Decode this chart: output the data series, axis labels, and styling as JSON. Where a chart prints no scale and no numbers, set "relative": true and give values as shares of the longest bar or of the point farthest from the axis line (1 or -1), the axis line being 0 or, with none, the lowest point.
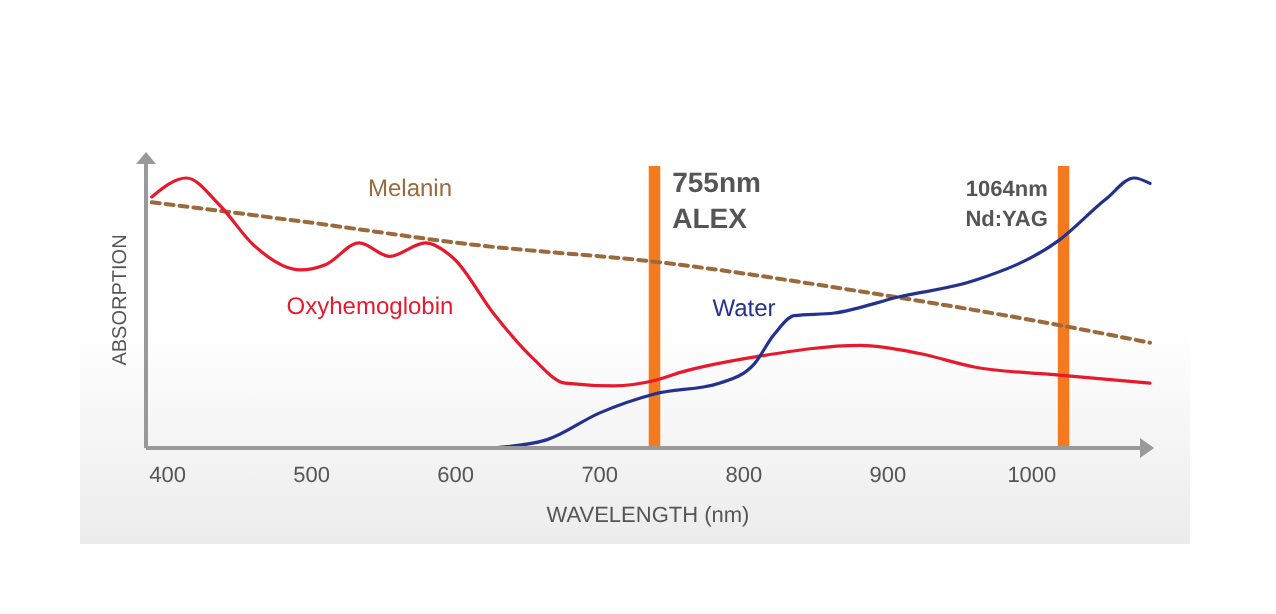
{
  "chart_data": {
    "type": "line",
    "relative": true,
    "xlabel": "WAVELENGTH (nm)",
    "ylabel": "ABSORPTION",
    "xlim": [
      385,
      1082
    ],
    "xticks": [
      400,
      500,
      600,
      700,
      800,
      900,
      1000
    ],
    "series": [
      {
        "name": "Melanin",
        "color": "#9b6a3c",
        "line_style": "dashed",
        "x": [
          389,
          492,
          617,
          738,
          881,
          1024,
          1082
        ],
        "values": [
          0.91,
          0.84,
          0.75,
          0.69,
          0.58,
          0.45,
          0.39
        ]
      },
      {
        "name": "Oxyhemoglobin",
        "color": "#e8192c",
        "x": [
          389,
          413,
          436,
          460,
          492,
          510,
          533,
          554,
          579,
          599,
          626,
          654,
          676,
          710,
          738,
          756,
          811,
          881,
          922,
          960,
          1019,
          1082
        ],
        "values": [
          0.93,
          1.0,
          0.9,
          0.75,
          0.66,
          0.68,
          0.76,
          0.71,
          0.76,
          0.7,
          0.5,
          0.33,
          0.24,
          0.23,
          0.25,
          0.28,
          0.34,
          0.38,
          0.35,
          0.3,
          0.27,
          0.24
        ]
      },
      {
        "name": "Water",
        "color": "#23318f",
        "x": [
          626,
          663,
          700,
          738,
          783,
          807,
          821,
          835,
          863,
          908,
          960,
          1019,
          1051,
          1071,
          1082
        ],
        "values": [
          0,
          0.03,
          0.13,
          0.2,
          0.24,
          0.31,
          0.42,
          0.49,
          0.5,
          0.56,
          0.62,
          0.77,
          0.92,
          1.0,
          0.98
        ]
      }
    ],
    "bands": [
      {
        "axis": "x",
        "from": 734,
        "to": 742,
        "label": "755nm ALEX",
        "color": "#f47a20"
      },
      {
        "axis": "x",
        "from": 1018,
        "to": 1026,
        "label": "1064nm Nd:YAG",
        "color": "#f47a20"
      }
    ]
  }
}
